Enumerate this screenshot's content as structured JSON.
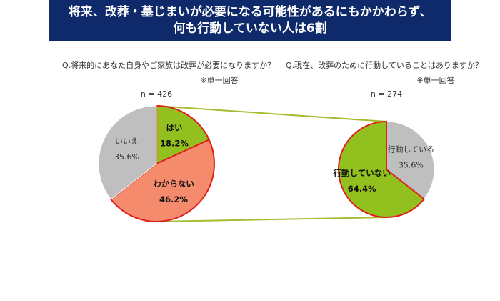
{
  "title": [
    "将来、改葬・墓じまいが必要になる可能性があるにもかかわらず、",
    "何も行動していない人は6割"
  ],
  "chart_data": [
    {
      "type": "pie",
      "question": "Q.将来的にあなた自身やご家族は改葬が必要になりますか？",
      "note": "※単一回答",
      "n": "n = 426",
      "categories": [
        "はい",
        "わからない",
        "いいえ"
      ],
      "values": [
        18.2,
        46.2,
        35.6
      ],
      "value_labels": [
        "18.2%",
        "46.2%",
        "35.6%"
      ],
      "colors": [
        "#92c01f",
        "#f38b6c",
        "#bfbfbf"
      ]
    },
    {
      "type": "pie",
      "question": "Q.現在、改葬のために行動していることはありますか？",
      "note": "※単一回答",
      "n": "n = 274",
      "categories": [
        "行動している",
        "行動していない"
      ],
      "values": [
        35.6,
        64.4
      ],
      "value_labels": [
        "35.6%",
        "64.4%"
      ],
      "colors": [
        "#bfbfbf",
        "#92c01f"
      ]
    }
  ]
}
